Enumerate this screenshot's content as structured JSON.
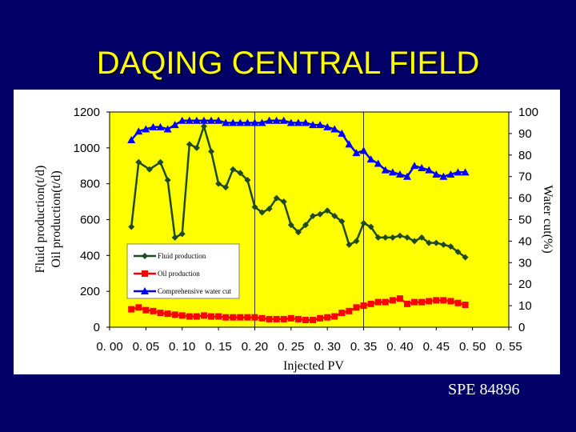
{
  "slide": {
    "title": "DAQING CENTRAL FIELD",
    "footer": "SPE 84896"
  },
  "colors": {
    "background": "#000066",
    "title": "#ffff00",
    "plot_area": "#ffff00",
    "fluid": "#1f4a1f",
    "oil": "#ff0000",
    "water_cut": "#0000ff"
  },
  "chart_data": {
    "type": "line",
    "xlabel": "Injected PV",
    "ylabel": [
      "Fluid production(t/d)",
      "Oil production(t/d)"
    ],
    "y2label": "Water cut(%)",
    "xlim": [
      0,
      0.55
    ],
    "ylim": [
      0,
      1200
    ],
    "y2lim": [
      0,
      100
    ],
    "x_ticks": [
      "0. 00",
      "0. 05",
      "0. 10",
      "0. 15",
      "0. 20",
      "0. 25",
      "0. 30",
      "0. 35",
      "0. 40",
      "0. 45",
      "0. 50",
      "0. 55"
    ],
    "y_ticks": [
      "0",
      "200",
      "400",
      "600",
      "800",
      "1000",
      "1200"
    ],
    "y2_ticks": [
      "0",
      "10",
      "20",
      "30",
      "40",
      "50",
      "60",
      "70",
      "80",
      "90",
      "100"
    ],
    "grid": "vertical lines at 0.20 and 0.35",
    "legend_position": "lower-left",
    "series": [
      {
        "name": "Fluid production",
        "axis": "left",
        "marker": "diamond",
        "x": [
          0.03,
          0.04,
          0.055,
          0.07,
          0.08,
          0.09,
          0.1,
          0.11,
          0.12,
          0.13,
          0.14,
          0.15,
          0.16,
          0.17,
          0.18,
          0.19,
          0.2,
          0.21,
          0.22,
          0.23,
          0.24,
          0.25,
          0.26,
          0.27,
          0.28,
          0.29,
          0.3,
          0.31,
          0.32,
          0.33,
          0.34,
          0.35,
          0.36,
          0.37,
          0.38,
          0.39,
          0.4,
          0.41,
          0.42,
          0.43,
          0.44,
          0.45,
          0.46,
          0.47,
          0.48,
          0.49
        ],
        "values": [
          560,
          920,
          880,
          920,
          820,
          500,
          520,
          1020,
          1000,
          1120,
          980,
          800,
          780,
          880,
          860,
          820,
          670,
          640,
          660,
          720,
          700,
          570,
          530,
          570,
          620,
          630,
          650,
          620,
          590,
          460,
          480,
          580,
          560,
          500,
          500,
          500,
          510,
          500,
          480,
          500,
          470,
          470,
          460,
          450,
          420,
          390
        ]
      },
      {
        "name": "Oil production",
        "axis": "left",
        "marker": "square",
        "x": [
          0.03,
          0.04,
          0.05,
          0.06,
          0.07,
          0.08,
          0.09,
          0.1,
          0.11,
          0.12,
          0.13,
          0.14,
          0.15,
          0.16,
          0.17,
          0.18,
          0.19,
          0.2,
          0.21,
          0.22,
          0.23,
          0.24,
          0.25,
          0.26,
          0.27,
          0.28,
          0.29,
          0.3,
          0.31,
          0.32,
          0.33,
          0.34,
          0.35,
          0.36,
          0.37,
          0.38,
          0.39,
          0.4,
          0.41,
          0.42,
          0.43,
          0.44,
          0.45,
          0.46,
          0.47,
          0.48,
          0.49
        ],
        "values": [
          100,
          110,
          95,
          90,
          80,
          75,
          70,
          65,
          60,
          60,
          65,
          60,
          60,
          55,
          55,
          55,
          55,
          55,
          50,
          45,
          45,
          45,
          50,
          45,
          40,
          40,
          50,
          55,
          60,
          80,
          90,
          110,
          120,
          130,
          140,
          140,
          150,
          160,
          130,
          140,
          140,
          145,
          150,
          150,
          145,
          135,
          125
        ]
      },
      {
        "name": "Comprehensive water cut",
        "axis": "right",
        "marker": "triangle",
        "x": [
          0.03,
          0.04,
          0.05,
          0.06,
          0.07,
          0.08,
          0.09,
          0.1,
          0.11,
          0.12,
          0.13,
          0.14,
          0.15,
          0.16,
          0.17,
          0.18,
          0.19,
          0.2,
          0.21,
          0.22,
          0.23,
          0.24,
          0.25,
          0.26,
          0.27,
          0.28,
          0.29,
          0.3,
          0.31,
          0.32,
          0.33,
          0.34,
          0.35,
          0.36,
          0.37,
          0.38,
          0.39,
          0.4,
          0.41,
          0.42,
          0.43,
          0.44,
          0.45,
          0.46,
          0.47,
          0.48,
          0.49
        ],
        "values": [
          87,
          91,
          92,
          93,
          93,
          92,
          94,
          96,
          96,
          96,
          96,
          96,
          96,
          95,
          95,
          95,
          95,
          95,
          95,
          96,
          96,
          96,
          95,
          95,
          95,
          94,
          94,
          93,
          92,
          90,
          85,
          81,
          82,
          78,
          76,
          73,
          72,
          71,
          70,
          75,
          74,
          73,
          71,
          70,
          71,
          72,
          72
        ]
      }
    ]
  }
}
